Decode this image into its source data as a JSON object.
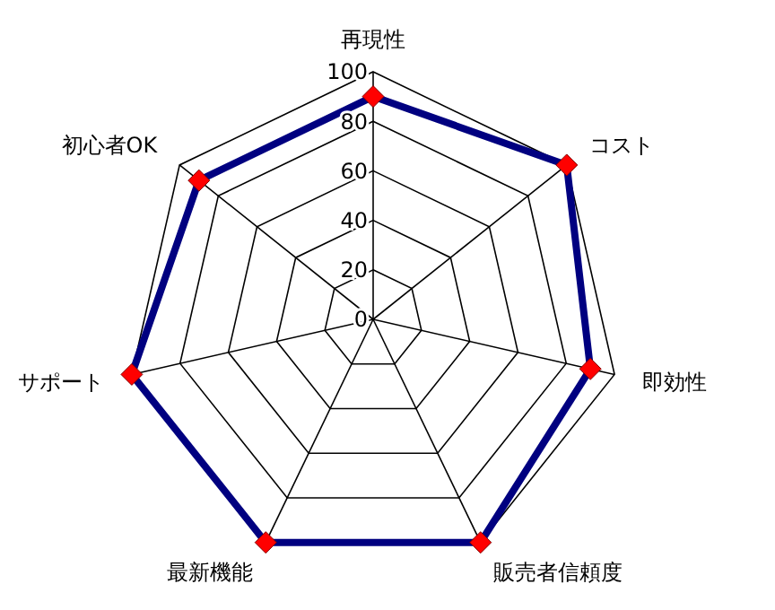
{
  "chart_data": {
    "type": "radar",
    "categories": [
      "再現性",
      "コスト",
      "即効性",
      "販売者信頼度",
      "最新機能",
      "サポート",
      "初心者OK"
    ],
    "series": [
      {
        "color": "#000080",
        "values": [
          90,
          100,
          90,
          100,
          100,
          100,
          90
        ]
      }
    ],
    "ylim": [
      0,
      100
    ],
    "yticks": [
      0,
      20,
      40,
      60,
      80,
      100
    ],
    "grid": true,
    "marker": "diamond"
  }
}
